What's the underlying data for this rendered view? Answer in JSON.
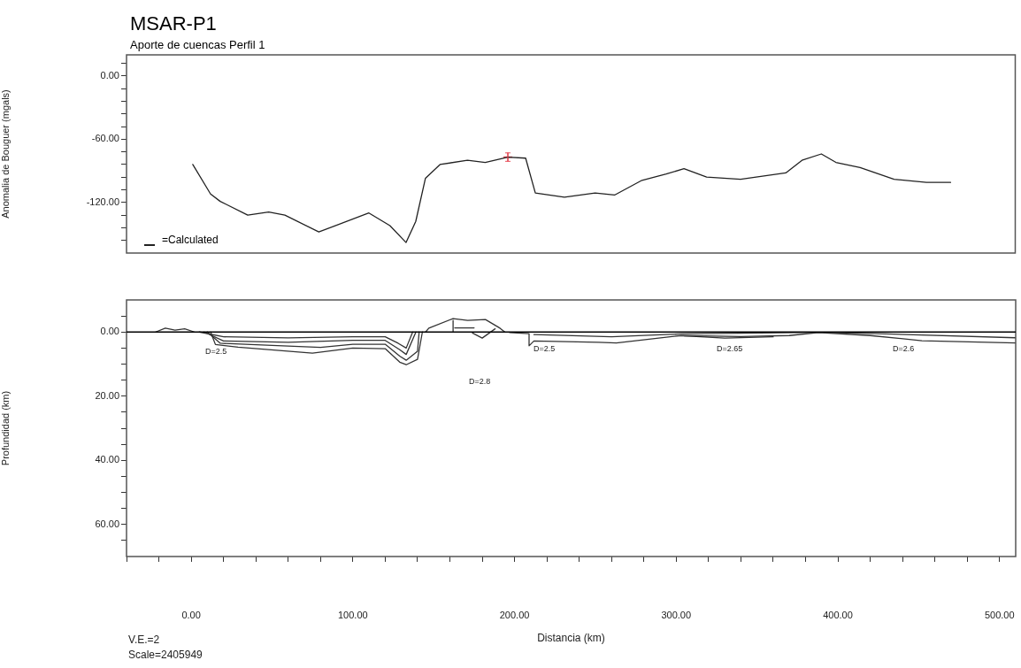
{
  "chart_data": [
    {
      "type": "line",
      "title": "MSAR-P1",
      "subtitle": "Aporte de cuencas Perfil 1",
      "ylabel": "Anomalia de Bouguer (mgals)",
      "xlim": [
        -40,
        510
      ],
      "ylim": [
        -168,
        20
      ],
      "yticks": [
        {
          "value": 12,
          "label": null
        },
        {
          "value": 0,
          "label": "0.00"
        },
        {
          "value": -12,
          "label": null
        },
        {
          "value": -24,
          "label": null
        },
        {
          "value": -36,
          "label": null
        },
        {
          "value": -48,
          "label": null
        },
        {
          "value": -60,
          "label": "-60.00"
        },
        {
          "value": -72,
          "label": null
        },
        {
          "value": -84,
          "label": null
        },
        {
          "value": -96,
          "label": null
        },
        {
          "value": -108,
          "label": null
        },
        {
          "value": -120,
          "label": "-120.00"
        },
        {
          "value": -132,
          "label": null
        },
        {
          "value": -144,
          "label": null
        },
        {
          "value": -156,
          "label": null
        }
      ],
      "tick_labels": "y",
      "legend": "bottom left",
      "grid": false,
      "series": [
        {
          "name": "=Calculated",
          "type": "line",
          "color": "#222222",
          "marker": "none",
          "x": [
            1,
            12,
            18,
            35,
            48,
            58,
            79,
            110,
            123,
            133,
            139,
            145,
            154,
            171,
            182,
            196,
            207,
            213,
            231,
            250,
            262,
            279,
            294,
            305,
            319,
            340,
            368,
            378,
            390,
            399,
            414,
            435,
            455,
            470
          ],
          "values": [
            -84,
            -112,
            -119,
            -132,
            -129,
            -132,
            -148,
            -130,
            -142,
            -158,
            -138,
            -97,
            -84,
            -80,
            -82,
            -77,
            -78,
            -111,
            -115,
            -111,
            -113,
            -99,
            -93,
            -88,
            -96,
            -98,
            -92,
            -80,
            -74,
            -82,
            -87,
            -98,
            -101,
            -101
          ]
        },
        {
          "type": "scatter",
          "color": "#e8505b",
          "marker": "cross",
          "x": [
            196
          ],
          "values": [
            -77
          ],
          "errors": [
            4
          ]
        }
      ]
    },
    {
      "type": "line",
      "xlabel": "Distancia (km)",
      "ylabel": "Profundidad (km)",
      "xlim": [
        -40,
        510
      ],
      "ylim": [
        70,
        -10
      ],
      "xticks": [
        {
          "value": -40,
          "label": null
        },
        {
          "value": -20,
          "label": null
        },
        {
          "value": 0,
          "label": "0.00"
        },
        {
          "value": 20,
          "label": null
        },
        {
          "value": 40,
          "label": null
        },
        {
          "value": 60,
          "label": null
        },
        {
          "value": 80,
          "label": null
        },
        {
          "value": 100,
          "label": "100.00"
        },
        {
          "value": 120,
          "label": null
        },
        {
          "value": 140,
          "label": null
        },
        {
          "value": 160,
          "label": null
        },
        {
          "value": 180,
          "label": null
        },
        {
          "value": 200,
          "label": "200.00"
        },
        {
          "value": 220,
          "label": null
        },
        {
          "value": 240,
          "label": null
        },
        {
          "value": 260,
          "label": null
        },
        {
          "value": 280,
          "label": null
        },
        {
          "value": 300,
          "label": "300.00"
        },
        {
          "value": 320,
          "label": null
        },
        {
          "value": 340,
          "label": null
        },
        {
          "value": 360,
          "label": null
        },
        {
          "value": 380,
          "label": null
        },
        {
          "value": 400,
          "label": "400.00"
        },
        {
          "value": 420,
          "label": null
        },
        {
          "value": 440,
          "label": null
        },
        {
          "value": 460,
          "label": null
        },
        {
          "value": 480,
          "label": null
        },
        {
          "value": 500,
          "label": "500.00"
        }
      ],
      "yticks": [
        {
          "value": -5,
          "label": null
        },
        {
          "value": 0,
          "label": "0.00"
        },
        {
          "value": 5,
          "label": null
        },
        {
          "value": 10,
          "label": null
        },
        {
          "value": 15,
          "label": null
        },
        {
          "value": 20,
          "label": "20.00"
        },
        {
          "value": 25,
          "label": null
        },
        {
          "value": 30,
          "label": null
        },
        {
          "value": 35,
          "label": null
        },
        {
          "value": 40,
          "label": "40.00"
        },
        {
          "value": 45,
          "label": null
        },
        {
          "value": 50,
          "label": null
        },
        {
          "value": 55,
          "label": null
        },
        {
          "value": 60,
          "label": "60.00"
        },
        {
          "value": 65,
          "label": null
        }
      ],
      "grid": false,
      "ref_lines": [
        {
          "axis": "y",
          "value": 0,
          "color": "#000000"
        }
      ],
      "annotations": [
        "D=2.5",
        "D=2.8",
        "D=2.5",
        "D=2.65",
        "D=2.6",
        "V.E.=2",
        "Scale=2405949"
      ],
      "series": [
        {
          "type": "line",
          "color": "#333333",
          "marker": "none",
          "x": [
            -22,
            -16,
            -10,
            -4,
            2
          ],
          "values": [
            0,
            -1.2,
            -0.6,
            -1,
            0
          ]
        },
        {
          "type": "line",
          "color": "#333333",
          "marker": "none",
          "x": [
            5,
            20,
            60,
            100,
            120,
            128,
            133,
            137
          ],
          "values": [
            0,
            1.5,
            1.8,
            1.5,
            1.5,
            3.5,
            5,
            0
          ]
        },
        {
          "type": "line",
          "color": "#333333",
          "marker": "none",
          "x": [
            8,
            20,
            60,
            100,
            120,
            129,
            133,
            139
          ],
          "values": [
            0,
            2.8,
            3.2,
            2.6,
            2.6,
            5.5,
            7,
            0
          ]
        },
        {
          "type": "line",
          "color": "#333333",
          "marker": "none",
          "x": [
            10,
            18,
            50,
            80,
            100,
            120,
            129,
            133,
            140,
            141
          ],
          "values": [
            0,
            3.5,
            4.2,
            4.8,
            3.8,
            3.8,
            7.5,
            8.8,
            6,
            0
          ]
        },
        {
          "type": "line",
          "color": "#333333",
          "marker": "none",
          "x": [
            12,
            15,
            29,
            75,
            100,
            120,
            129,
            133,
            140,
            143
          ],
          "values": [
            0,
            3.9,
            4.7,
            6.6,
            5,
            5.2,
            9.4,
            10.2,
            8.5,
            0
          ]
        },
        {
          "type": "line",
          "color": "#333333",
          "marker": "none",
          "x": [
            145,
            147,
            162,
            171,
            182,
            191,
            194
          ],
          "values": [
            0,
            -1.2,
            -4.2,
            -3.6,
            -3.9,
            -1.2,
            0
          ]
        },
        {
          "type": "line",
          "color": "#333333",
          "marker": "none",
          "x": [
            162,
            162
          ],
          "values": [
            -3.6,
            -0.2
          ]
        },
        {
          "type": "line",
          "color": "#333333",
          "marker": "none",
          "x": [
            163,
            175
          ],
          "values": [
            -1.3,
            -1.3
          ]
        },
        {
          "type": "line",
          "color": "#333333",
          "marker": "none",
          "x": [
            174,
            180,
            188
          ],
          "values": [
            0.3,
            1.9,
            -1
          ]
        },
        {
          "type": "line",
          "color": "#333333",
          "marker": "none",
          "x": [
            197,
            209,
            209,
            212,
            252,
            263,
            303,
            340,
            370,
            388,
            420,
            452,
            510
          ],
          "values": [
            0.2,
            0.5,
            4.3,
            2.8,
            3.2,
            3.4,
            1.1,
            1.4,
            1.1,
            0.2,
            1.1,
            2.7,
            3.4
          ]
        },
        {
          "type": "line",
          "color": "#333333",
          "marker": "none",
          "x": [
            212,
            260,
            303,
            388,
            430,
            510
          ],
          "values": [
            0.8,
            1.5,
            0.6,
            0.1,
            0.6,
            1.8
          ]
        },
        {
          "type": "line",
          "color": "#333333",
          "marker": "none",
          "x": [
            305,
            330,
            360
          ],
          "values": [
            1.2,
            1.9,
            1.5
          ]
        }
      ]
    }
  ]
}
